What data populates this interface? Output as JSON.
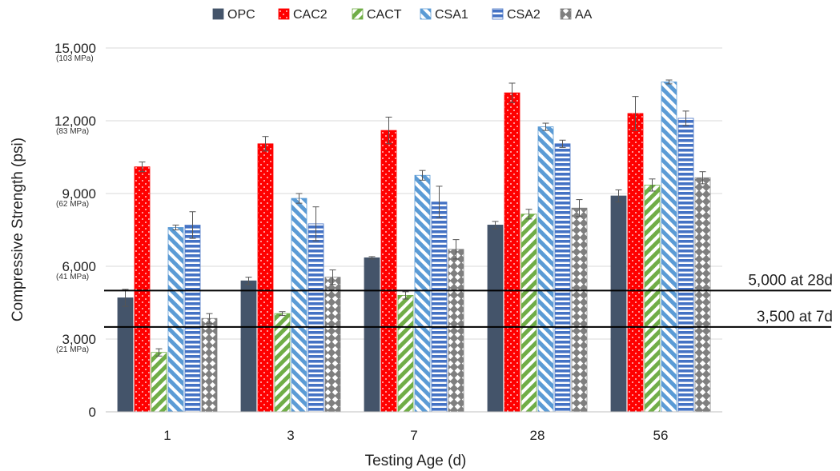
{
  "chart_data": {
    "type": "bar",
    "title": "",
    "xlabel": "Testing Age (d)",
    "ylabel": "Compressive Strength (psi)",
    "ylim": [
      0,
      15000
    ],
    "grid": true,
    "legend_position": "top",
    "categories": [
      "1",
      "3",
      "7",
      "28",
      "56"
    ],
    "yticks": [
      {
        "value": 0,
        "label": "0",
        "secondary": ""
      },
      {
        "value": 3000,
        "label": "3,000",
        "secondary": "(21 MPa)"
      },
      {
        "value": 6000,
        "label": "6,000",
        "secondary": "(41 MPa)"
      },
      {
        "value": 9000,
        "label": "9,000",
        "secondary": "(62 MPa)"
      },
      {
        "value": 12000,
        "label": "12,000",
        "secondary": "(83 MPa)"
      },
      {
        "value": 15000,
        "label": "15,000",
        "secondary": "(103 MPa)"
      }
    ],
    "series": [
      {
        "name": "OPC",
        "color": "#44546A",
        "pattern": "solid",
        "values": [
          4700,
          5400,
          6350,
          7700,
          8900
        ],
        "errors": [
          350,
          150,
          50,
          150,
          250
        ]
      },
      {
        "name": "CAC2",
        "color": "#FF0000",
        "pattern": "dots",
        "values": [
          10100,
          11050,
          11600,
          13150,
          12300
        ],
        "errors": [
          200,
          300,
          550,
          400,
          700
        ]
      },
      {
        "name": "CACT",
        "color": "#70AD47",
        "pattern": "diagonal",
        "values": [
          2450,
          4050,
          4800,
          8150,
          9350
        ],
        "errors": [
          150,
          80,
          150,
          200,
          250
        ]
      },
      {
        "name": "CSA1",
        "color": "#5B9BD5",
        "pattern": "wide-diagonal",
        "values": [
          7600,
          8800,
          9750,
          11750,
          13600
        ],
        "errors": [
          100,
          200,
          200,
          150,
          80
        ]
      },
      {
        "name": "CSA2",
        "color": "#4472C4",
        "pattern": "horizontal",
        "values": [
          7700,
          7750,
          8650,
          11050,
          12100
        ],
        "errors": [
          550,
          700,
          650,
          150,
          300
        ]
      },
      {
        "name": "AA",
        "color": "#7F7F7F",
        "pattern": "diamonds",
        "values": [
          3850,
          5550,
          6700,
          8400,
          9650
        ],
        "errors": [
          200,
          300,
          400,
          350,
          250
        ]
      }
    ],
    "reference_lines": [
      {
        "value": 5000,
        "label": "5,000 at 28d"
      },
      {
        "value": 3500,
        "label": "3,500 at 7d"
      }
    ]
  }
}
